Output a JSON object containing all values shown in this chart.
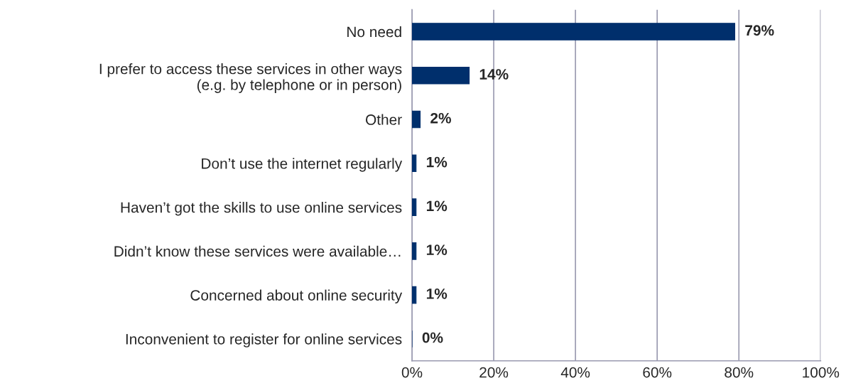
{
  "chart_data": {
    "type": "bar",
    "orientation": "horizontal",
    "categories": [
      "No need",
      "I prefer to access these services in other ways\n(e.g. by telephone or in person)",
      "Other",
      "Don’t use the internet regularly",
      "Haven’t got the skills to use online services",
      "Didn’t know these services were available…",
      "Concerned about online security",
      "Inconvenient to register for online services"
    ],
    "values": [
      79,
      14,
      2,
      1,
      1,
      1,
      1,
      0
    ],
    "value_labels": [
      "79%",
      "14%",
      "2%",
      "1%",
      "1%",
      "1%",
      "1%",
      "0%"
    ],
    "color": "#002f6c",
    "xlim": [
      0,
      100
    ],
    "xticks": [
      {
        "value": 0,
        "label": "0%"
      },
      {
        "value": 20,
        "label": "20%"
      },
      {
        "value": 40,
        "label": "40%"
      },
      {
        "value": 60,
        "label": "60%"
      },
      {
        "value": 80,
        "label": "80%"
      },
      {
        "value": 100,
        "label": "100%"
      }
    ],
    "grid": "x",
    "legend": false
  }
}
